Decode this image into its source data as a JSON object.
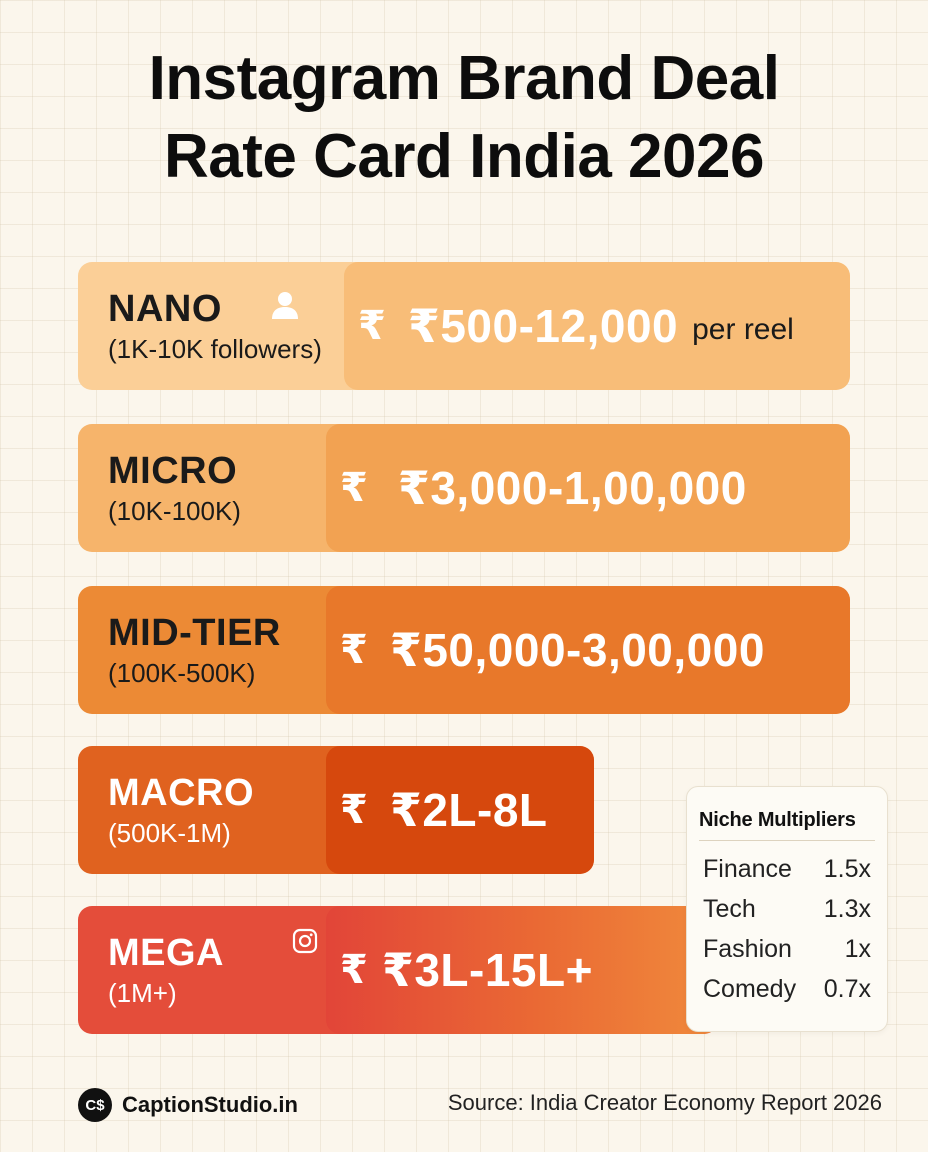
{
  "title": {
    "line1": "Instagram Brand Deal",
    "line2": "Rate Card India 2026"
  },
  "currency_symbol": "₹",
  "tiers": {
    "nano": {
      "name": "NANO",
      "range": "(1K-10K followers)",
      "price": "₹500-12,000",
      "unit": "per reel",
      "color": "#fbcf97",
      "icon": "user-icon"
    },
    "micro": {
      "name": "MICRO",
      "range": "(10K-100K)",
      "price": "₹3,000-1,00,000",
      "color": "#f6b46b"
    },
    "mid": {
      "name": "MID-TIER",
      "range": "(100K-500K)",
      "price": "₹50,000-3,00,000",
      "color": "#ec8a35"
    },
    "macro": {
      "name": "MACRO",
      "range": "(500K-1M)",
      "price": "₹2L-8L",
      "color": "#e0621f"
    },
    "mega": {
      "name": "MEGA",
      "range": "(1M+)",
      "price": "₹3L-15L+",
      "color": "#e44d3a",
      "icon": "instagram-icon"
    }
  },
  "niche": {
    "title": "Niche Multipliers",
    "rows": [
      {
        "label": "Finance",
        "value": "1.5x"
      },
      {
        "label": "Tech",
        "value": "1.3x"
      },
      {
        "label": "Fashion",
        "value": "1x"
      },
      {
        "label": "Comedy",
        "value": "0.7x"
      }
    ]
  },
  "footer": {
    "logo_text": "C$",
    "brand": "CaptionStudio.in",
    "source": "Source: India Creator Economy Report 2026"
  }
}
